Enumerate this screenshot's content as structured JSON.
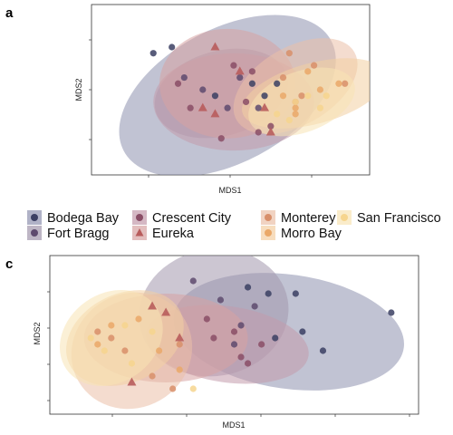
{
  "figure": {
    "panel_letters": [
      "a",
      "c"
    ]
  },
  "legend": {
    "position": "between-panels",
    "entries": [
      {
        "name": "Bodega Bay",
        "shape": "circle",
        "color": "#3b3f63",
        "fill": "#8e92af"
      },
      {
        "name": "Fort Bragg",
        "shape": "circle",
        "color": "#5e4a6e",
        "fill": "#a397ad"
      },
      {
        "name": "Crescent City",
        "shape": "circle",
        "color": "#8a4d66",
        "fill": "#c39aab"
      },
      {
        "name": "Eureka",
        "shape": "triangle",
        "color": "#b85c5c",
        "fill": "#d7a3a3"
      },
      {
        "name": "Monterey",
        "shape": "circle",
        "color": "#d88f6a",
        "fill": "#ebc0a8"
      },
      {
        "name": "Morro Bay",
        "shape": "circle",
        "color": "#eaa868",
        "fill": "#f3cfa3"
      },
      {
        "name": "San Francisco",
        "shape": "circle",
        "color": "#f6d58e",
        "fill": "#f8e4b4"
      }
    ]
  },
  "chart_data": [
    {
      "panel": "a",
      "type": "scatter",
      "xlabel": "MDS1",
      "ylabel": "MDS2",
      "grid": false,
      "ellipses": true,
      "series": [
        {
          "name": "Bodega Bay",
          "points": [
            [
              -0.6,
              0.55
            ],
            [
              -0.45,
              0.6
            ],
            [
              0.3,
              0.2
            ],
            [
              0.2,
              0.3
            ],
            [
              -0.1,
              0.2
            ],
            [
              0.4,
              0.3
            ]
          ],
          "ellipse": {
            "cx": 0.0,
            "cy": 0.2,
            "rx": 0.95,
            "ry": 0.55,
            "angle": -28
          }
        },
        {
          "name": "Fort Bragg",
          "points": [
            [
              -0.35,
              0.35
            ],
            [
              -0.2,
              0.25
            ],
            [
              0.0,
              0.1
            ],
            [
              0.1,
              0.35
            ],
            [
              0.25,
              0.1
            ]
          ],
          "ellipse": {
            "cx": -0.05,
            "cy": 0.22,
            "rx": 0.55,
            "ry": 0.35,
            "angle": -15
          }
        },
        {
          "name": "Crescent City",
          "points": [
            [
              -0.4,
              0.3
            ],
            [
              -0.3,
              0.1
            ],
            [
              0.05,
              0.45
            ],
            [
              0.15,
              0.15
            ],
            [
              0.2,
              0.4
            ],
            [
              0.25,
              -0.1
            ],
            [
              -0.05,
              -0.15
            ],
            [
              0.35,
              -0.05
            ]
          ],
          "ellipse": {
            "cx": 0.05,
            "cy": 0.15,
            "rx": 0.65,
            "ry": 0.4,
            "angle": 0
          }
        },
        {
          "name": "Eureka",
          "points": [
            [
              -0.1,
              0.6
            ],
            [
              0.1,
              0.4
            ],
            [
              -0.1,
              0.05
            ],
            [
              -0.2,
              0.1
            ],
            [
              0.35,
              -0.1
            ],
            [
              0.3,
              0.1
            ]
          ],
          "ellipse": {
            "cx": 0.0,
            "cy": 0.3,
            "rx": 0.55,
            "ry": 0.45,
            "angle": 0
          }
        },
        {
          "name": "Monterey",
          "points": [
            [
              0.5,
              0.55
            ],
            [
              0.45,
              0.35
            ],
            [
              0.6,
              0.2
            ],
            [
              0.7,
              0.45
            ],
            [
              0.55,
              0.15
            ],
            [
              0.95,
              0.3
            ]
          ],
          "ellipse": {
            "cx": 0.55,
            "cy": 0.28,
            "rx": 0.55,
            "ry": 0.32,
            "angle": -30
          }
        },
        {
          "name": "Morro Bay",
          "points": [
            [
              0.45,
              0.2
            ],
            [
              0.55,
              0.1
            ],
            [
              0.75,
              0.25
            ],
            [
              0.9,
              0.3
            ],
            [
              0.65,
              0.4
            ],
            [
              0.55,
              0.05
            ]
          ],
          "ellipse": {
            "cx": 0.7,
            "cy": 0.22,
            "rx": 0.6,
            "ry": 0.25,
            "angle": -15
          }
        },
        {
          "name": "San Francisco",
          "points": [
            [
              0.4,
              0.05
            ],
            [
              0.55,
              0.15
            ],
            [
              0.65,
              0.2
            ],
            [
              0.5,
              0.0
            ],
            [
              0.75,
              0.1
            ],
            [
              0.8,
              0.2
            ]
          ],
          "ellipse": {
            "cx": 0.6,
            "cy": 0.15,
            "rx": 0.45,
            "ry": 0.25,
            "angle": -20
          }
        }
      ]
    },
    {
      "panel": "c",
      "type": "scatter",
      "xlabel": "MDS1",
      "ylabel": "MDS2",
      "grid": false,
      "ellipses": true,
      "series": [
        {
          "name": "Bodega Bay",
          "points": [
            [
              0.5,
              0.5
            ],
            [
              0.65,
              0.45
            ],
            [
              0.85,
              0.45
            ],
            [
              1.55,
              0.3
            ],
            [
              0.9,
              0.15
            ],
            [
              1.05,
              0.0
            ],
            [
              0.7,
              0.1
            ]
          ],
          "ellipse": {
            "cx": 0.8,
            "cy": 0.15,
            "rx": 0.85,
            "ry": 0.45,
            "angle": 8
          }
        },
        {
          "name": "Fort Bragg",
          "points": [
            [
              0.1,
              0.55
            ],
            [
              0.3,
              0.4
            ],
            [
              0.45,
              0.2
            ],
            [
              0.55,
              0.35
            ],
            [
              0.4,
              0.05
            ]
          ],
          "ellipse": {
            "cx": 0.25,
            "cy": 0.3,
            "rx": 0.55,
            "ry": 0.5,
            "angle": -10
          }
        },
        {
          "name": "Crescent City",
          "points": [
            [
              0.2,
              0.25
            ],
            [
              0.4,
              0.15
            ],
            [
              0.6,
              0.05
            ],
            [
              0.45,
              -0.05
            ],
            [
              0.25,
              0.1
            ],
            [
              0.5,
              -0.1
            ]
          ],
          "ellipse": {
            "cx": 0.35,
            "cy": 0.05,
            "rx": 0.6,
            "ry": 0.3,
            "angle": 8
          }
        },
        {
          "name": "Eureka",
          "points": [
            [
              -0.35,
              -0.25
            ],
            [
              -0.1,
              0.3
            ],
            [
              0.0,
              0.1
            ],
            [
              -0.2,
              0.35
            ]
          ],
          "ellipse": {
            "cx": -0.1,
            "cy": 0.1,
            "rx": 0.6,
            "ry": 0.35,
            "angle": 0
          }
        },
        {
          "name": "Monterey",
          "points": [
            [
              -0.6,
              0.15
            ],
            [
              -0.4,
              0.0
            ],
            [
              -0.2,
              -0.2
            ],
            [
              -0.05,
              -0.3
            ],
            [
              0.0,
              0.05
            ],
            [
              -0.5,
              0.1
            ]
          ],
          "ellipse": {
            "cx": -0.35,
            "cy": 0.0,
            "rx": 0.45,
            "ry": 0.45,
            "angle": -30
          }
        },
        {
          "name": "Morro Bay",
          "points": [
            [
              -0.5,
              0.2
            ],
            [
              -0.3,
              0.25
            ],
            [
              -0.15,
              0.0
            ],
            [
              0.0,
              -0.15
            ],
            [
              -0.6,
              0.05
            ]
          ],
          "ellipse": {
            "cx": -0.4,
            "cy": 0.1,
            "rx": 0.45,
            "ry": 0.35,
            "angle": -25
          }
        },
        {
          "name": "San Francisco",
          "points": [
            [
              -0.65,
              0.1
            ],
            [
              -0.55,
              0.0
            ],
            [
              -0.4,
              0.2
            ],
            [
              -0.35,
              -0.1
            ],
            [
              0.1,
              -0.3
            ],
            [
              -0.2,
              0.15
            ]
          ],
          "ellipse": {
            "cx": -0.5,
            "cy": 0.1,
            "rx": 0.4,
            "ry": 0.35,
            "angle": -35
          }
        }
      ]
    }
  ]
}
